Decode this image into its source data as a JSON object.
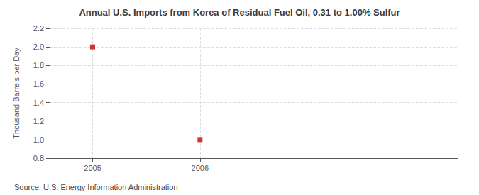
{
  "chart_data": {
    "type": "scatter",
    "title": "Annual U.S. Imports from Korea of Residual Fuel Oil, 0.31 to 1.00% Sulfur",
    "ylabel": "Thousand Barrels per Day",
    "annotations": [
      "Source: U.S. Energy Information Administration"
    ],
    "x": [
      2005,
      2006
    ],
    "values": [
      2.0,
      1.0
    ],
    "color": "#cc0000",
    "marker": "square",
    "xlim": [
      2004.6,
      2008.4
    ],
    "ylim": [
      0.8,
      2.2
    ],
    "xticks": [
      2005,
      2006
    ],
    "yticks": [
      0.8,
      {
        "value": 1.0,
        "label": "1.0"
      },
      1.2,
      1.4,
      1.6,
      1.8,
      {
        "value": 2.0,
        "label": "2.0"
      },
      2.2
    ],
    "grid": true
  }
}
